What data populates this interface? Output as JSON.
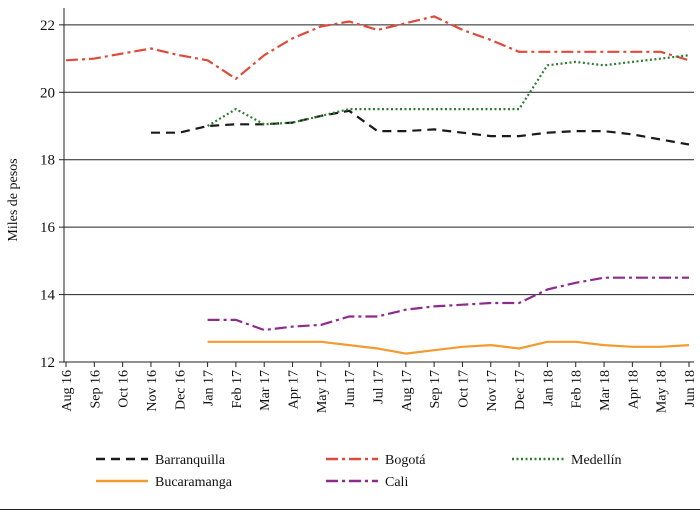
{
  "chart_data": {
    "type": "line",
    "title": "",
    "xlabel": "",
    "ylabel": "Miles de pesos",
    "ylim": [
      12,
      22.5
    ],
    "yticks": [
      12,
      14,
      16,
      18,
      20,
      22
    ],
    "grid": "horizontal",
    "categories": [
      "Aug 16",
      "Sep 16",
      "Oct 16",
      "Nov 16",
      "Dec 16",
      "Jan 17",
      "Feb 17",
      "Mar 17",
      "Apr 17",
      "May 17",
      "Jun 17",
      "Jul 17",
      "Aug 17",
      "Sep 17",
      "Oct 17",
      "Nov 17",
      "Dec 17",
      "Jan 18",
      "Feb 18",
      "Mar 18",
      "Apr 18",
      "May 18",
      "Jun 18"
    ],
    "series": [
      {
        "name": "Barranquilla",
        "color": "#1a1a1a",
        "dash": "dashed",
        "values": [
          null,
          null,
          null,
          18.8,
          18.8,
          19.0,
          19.05,
          19.05,
          19.1,
          19.3,
          19.45,
          18.85,
          18.85,
          18.9,
          18.8,
          18.7,
          18.7,
          18.8,
          18.85,
          18.85,
          18.75,
          18.6,
          18.45
        ]
      },
      {
        "name": "Bogotá",
        "color": "#e04a3a",
        "dash": "dashdot",
        "values": [
          20.95,
          21.0,
          21.15,
          21.3,
          21.1,
          20.95,
          20.4,
          21.1,
          21.6,
          21.95,
          22.1,
          21.85,
          22.05,
          22.25,
          21.85,
          21.55,
          21.2,
          21.2,
          21.2,
          21.2,
          21.2,
          21.2,
          20.95
        ]
      },
      {
        "name": "Medellín",
        "color": "#2e7d32",
        "dash": "dotted",
        "values": [
          null,
          null,
          null,
          null,
          null,
          19.0,
          19.5,
          19.05,
          19.1,
          19.3,
          19.5,
          19.5,
          19.5,
          19.5,
          19.5,
          19.5,
          19.5,
          20.8,
          20.9,
          20.8,
          20.9,
          21.0,
          21.1
        ]
      },
      {
        "name": "Bucaramanga",
        "color": "#f29b30",
        "dash": "solid",
        "values": [
          null,
          null,
          null,
          null,
          null,
          12.6,
          12.6,
          12.6,
          12.6,
          12.6,
          12.5,
          12.4,
          12.25,
          12.35,
          12.45,
          12.5,
          12.4,
          12.6,
          12.6,
          12.5,
          12.45,
          12.45,
          12.5
        ]
      },
      {
        "name": "Cali",
        "color": "#8e2a8e",
        "dash": "dashdot",
        "values": [
          null,
          null,
          null,
          null,
          null,
          13.25,
          13.25,
          12.95,
          13.05,
          13.1,
          13.35,
          13.35,
          13.55,
          13.65,
          13.7,
          13.75,
          13.75,
          14.15,
          14.35,
          14.5,
          14.5,
          14.5,
          14.5
        ]
      }
    ],
    "legend": {
      "position": "bottom",
      "entries": [
        "Barranquilla",
        "Bogotá",
        "Medellín",
        "Bucaramanga",
        "Cali"
      ]
    }
  }
}
